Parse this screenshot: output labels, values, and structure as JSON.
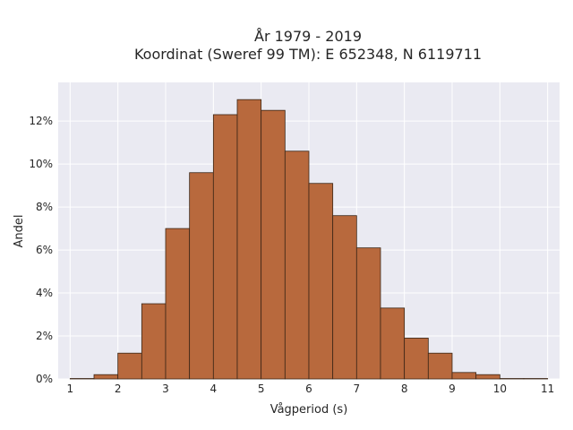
{
  "chart_data": {
    "type": "bar",
    "title_line1": "År 1979 - 2019",
    "title_line2": "Koordinat (Sweref 99 TM): E 652348, N 6119711",
    "xlabel": "Vågperiod (s)",
    "ylabel": "Andel",
    "xlim": [
      0.75,
      11.25
    ],
    "ylim": [
      0,
      13.8
    ],
    "x_ticks": [
      1,
      2,
      3,
      4,
      5,
      6,
      7,
      8,
      9,
      10,
      11
    ],
    "x_tick_labels": [
      "1",
      "2",
      "3",
      "4",
      "5",
      "6",
      "7",
      "8",
      "9",
      "10",
      "11"
    ],
    "y_ticks": [
      0,
      2,
      4,
      6,
      8,
      10,
      12
    ],
    "y_tick_labels": [
      "0%",
      "2%",
      "4%",
      "6%",
      "8%",
      "10%",
      "12%"
    ],
    "bin_width": 0.5,
    "bin_starts": [
      1.0,
      1.5,
      2.0,
      2.5,
      3.0,
      3.5,
      4.0,
      4.5,
      5.0,
      5.5,
      6.0,
      6.5,
      7.0,
      7.5,
      8.0,
      8.5,
      9.0,
      9.5,
      10.0,
      10.5
    ],
    "values": [
      0.02,
      0.2,
      1.2,
      3.5,
      7.0,
      9.6,
      12.3,
      13.0,
      12.5,
      10.6,
      9.1,
      7.6,
      6.1,
      3.3,
      1.9,
      1.2,
      0.3,
      0.2,
      0.02,
      0.02
    ],
    "grid": true,
    "legend": "none",
    "colors": {
      "bar_fill": "#b8693d",
      "bar_edge": "#3b2616",
      "plot_bg": "#eaeaf2",
      "grid": "#ffffff"
    }
  }
}
